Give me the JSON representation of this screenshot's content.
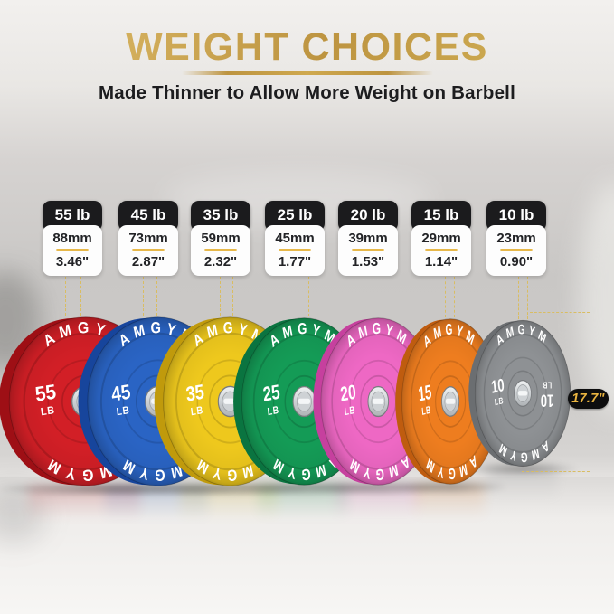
{
  "header": {
    "title": "WEIGHT CHOICES",
    "subtitle": "Made Thinner to Allow More Weight on Barbell"
  },
  "brand": "AMGYM",
  "diameter": {
    "label": "17.7\""
  },
  "accents": {
    "gold_title": "#bd9440",
    "card_divider": "#e7b84a",
    "dashed_guide": "#d9bd62",
    "badge_bg": "#0d0d0e",
    "badge_text": "#eab440"
  },
  "plates": [
    {
      "card_weight": "55 lb",
      "thickness_mm": "88mm",
      "thickness_in": "3.46\"",
      "face_weight": "55",
      "face_unit": "LB",
      "color": "#d21f26",
      "rim_color": "#9e0f15"
    },
    {
      "card_weight": "45 lb",
      "thickness_mm": "73mm",
      "thickness_in": "2.87\"",
      "face_weight": "45",
      "face_unit": "LB",
      "color": "#2a64c4",
      "rim_color": "#17459c"
    },
    {
      "card_weight": "35 lb",
      "thickness_mm": "59mm",
      "thickness_in": "2.32\"",
      "face_weight": "35",
      "face_unit": "LB",
      "color": "#eec81d",
      "rim_color": "#c09a0c"
    },
    {
      "card_weight": "25 lb",
      "thickness_mm": "45mm",
      "thickness_in": "1.77\"",
      "face_weight": "25",
      "face_unit": "LB",
      "color": "#149b56",
      "rim_color": "#0a7440"
    },
    {
      "card_weight": "20 lb",
      "thickness_mm": "39mm",
      "thickness_in": "1.53\"",
      "face_weight": "20",
      "face_unit": "LB",
      "color": "#ee68c4",
      "rim_color": "#c6409e"
    },
    {
      "card_weight": "15 lb",
      "thickness_mm": "29mm",
      "thickness_in": "1.14\"",
      "face_weight": "15",
      "face_unit": "LB",
      "color": "#ee7d1f",
      "rim_color": "#bf5c0f"
    },
    {
      "card_weight": "10 lb",
      "thickness_mm": "23mm",
      "thickness_in": "0.90\"",
      "face_weight": "10",
      "face_unit": "LB",
      "color": "#8e9194",
      "rim_color": "#6b6e71"
    }
  ]
}
